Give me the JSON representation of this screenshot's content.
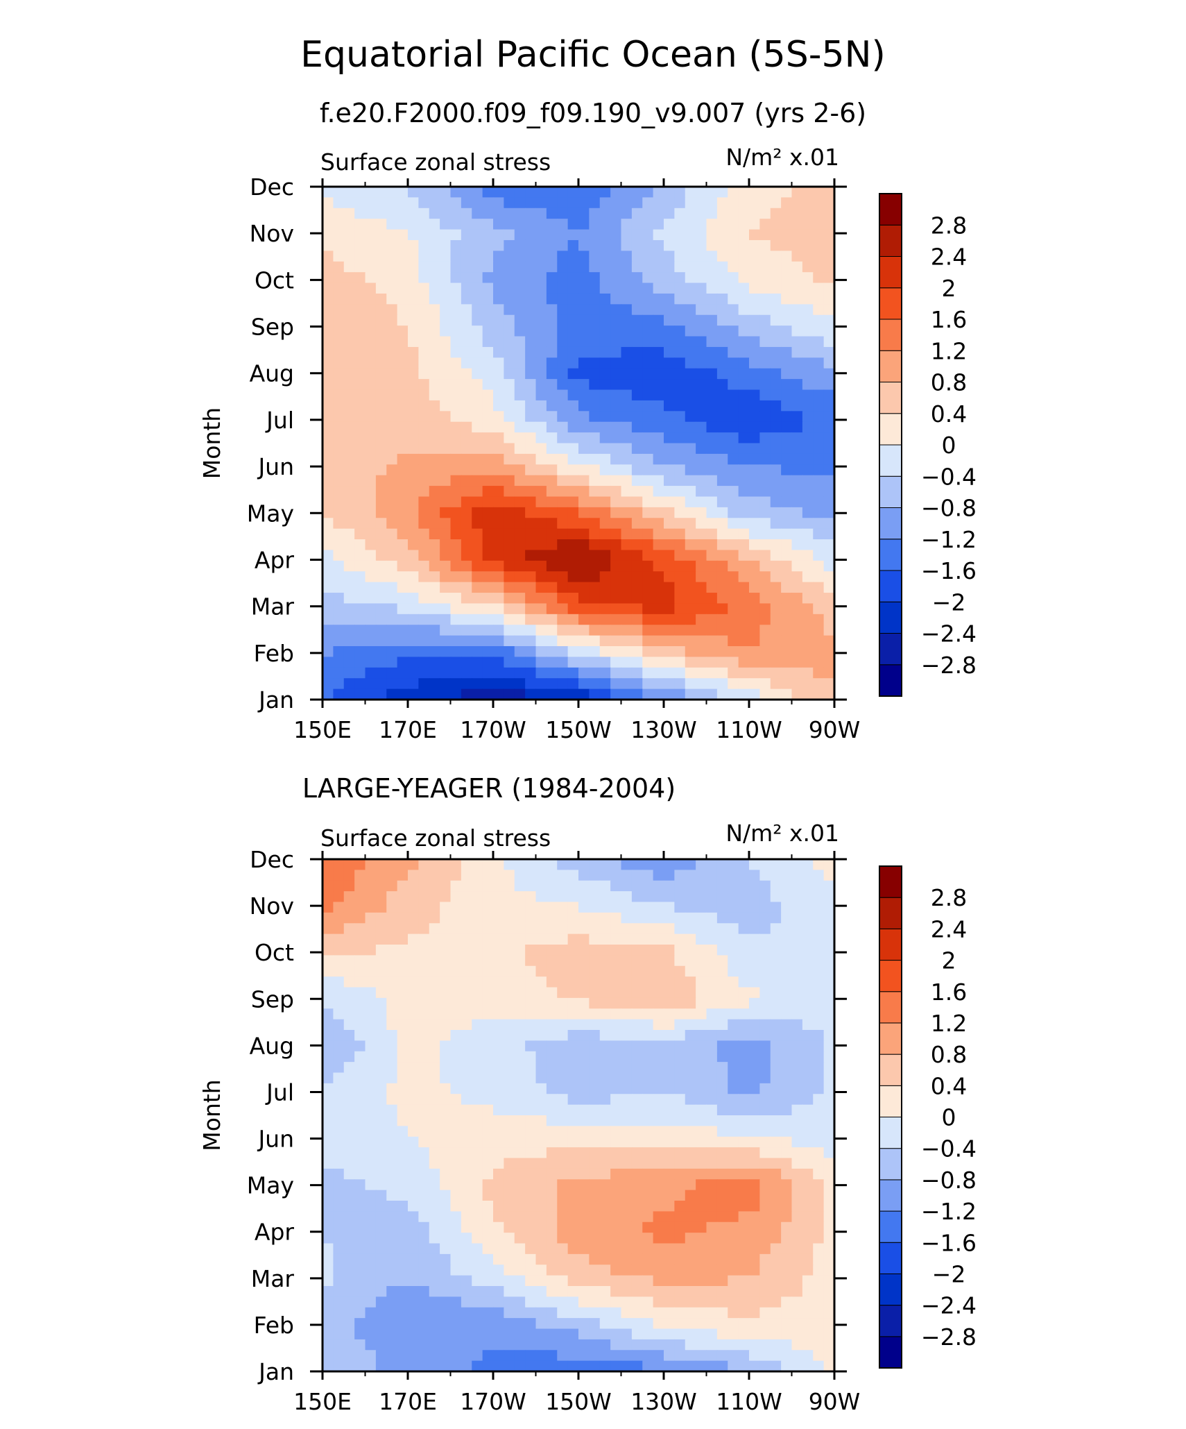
{
  "figure": {
    "title": "Equatorial Pacific Ocean (5S-5N)",
    "subtitle": "f.e20.F2000.f09_f09.190_v9.007 (yrs 2-6)"
  },
  "chart_data": [
    {
      "type": "heatmap",
      "panel_title": "",
      "field_label": "Surface zonal stress",
      "units_label": "N/m² x.01",
      "ylabel": "Month",
      "xlabel": "",
      "x_tick_labels": [
        "150E",
        "170E",
        "170W",
        "150W",
        "130W",
        "110W",
        "90W"
      ],
      "y_tick_labels": [
        "Jan",
        "Feb",
        "Mar",
        "Apr",
        "May",
        "Jun",
        "Jul",
        "Aug",
        "Sep",
        "Oct",
        "Nov",
        "Dec"
      ],
      "x": [
        150,
        170,
        190,
        210,
        230,
        250,
        270
      ],
      "xlim": [
        150,
        270
      ],
      "y": [
        1,
        2,
        3,
        4,
        5,
        6,
        7,
        8,
        9,
        10,
        11,
        12
      ],
      "ylim": [
        1,
        12
      ],
      "colorbar_levels": [
        -2.8,
        -2.4,
        -2,
        -1.6,
        -1.2,
        -0.8,
        -0.4,
        0,
        0.4,
        0.8,
        1.2,
        1.6,
        2,
        2.4,
        2.8
      ],
      "values": [
        [
          -1.6,
          -2.2,
          -2.7,
          -2.3,
          -1.2,
          -0.3,
          0.8
        ],
        [
          -1.2,
          -1.5,
          -1.5,
          -0.3,
          0.6,
          1.2,
          0.9
        ],
        [
          -0.6,
          -0.3,
          0.4,
          1.8,
          2.2,
          1.4,
          0.6
        ],
        [
          -0.1,
          0.6,
          2.1,
          2.9,
          1.9,
          0.8,
          -0.2
        ],
        [
          0.4,
          1.1,
          2.3,
          1.6,
          0.5,
          -0.6,
          -0.9
        ],
        [
          0.5,
          0.9,
          1.0,
          0.1,
          -0.8,
          -1.2,
          -1.3
        ],
        [
          0.6,
          0.6,
          0.2,
          -1.1,
          -1.5,
          -1.9,
          -1.5
        ],
        [
          0.7,
          0.5,
          -0.2,
          -1.7,
          -1.9,
          -1.4,
          -0.9
        ],
        [
          0.8,
          0.4,
          -0.6,
          -1.4,
          -1.3,
          -0.6,
          -0.1
        ],
        [
          0.6,
          0.2,
          -0.9,
          -1.4,
          -0.6,
          0.1,
          0.5
        ],
        [
          0.3,
          0.0,
          -0.7,
          -1.2,
          -0.3,
          0.4,
          0.6
        ],
        [
          -0.1,
          -0.4,
          -1.4,
          -1.5,
          -0.7,
          0.2,
          0.6
        ]
      ]
    },
    {
      "type": "heatmap",
      "panel_title": "LARGE-YEAGER (1984-2004)",
      "field_label": "Surface zonal stress",
      "units_label": "N/m² x.01",
      "ylabel": "Month",
      "xlabel": "",
      "x_tick_labels": [
        "150E",
        "170E",
        "170W",
        "150W",
        "130W",
        "110W",
        "90W"
      ],
      "y_tick_labels": [
        "Jan",
        "Feb",
        "Mar",
        "Apr",
        "May",
        "Jun",
        "Jul",
        "Aug",
        "Sep",
        "Oct",
        "Nov",
        "Dec"
      ],
      "x": [
        150,
        170,
        190,
        210,
        230,
        250,
        270
      ],
      "xlim": [
        150,
        270
      ],
      "y": [
        1,
        2,
        3,
        4,
        5,
        6,
        7,
        8,
        9,
        10,
        11,
        12
      ],
      "ylim": [
        1,
        12
      ],
      "colorbar_levels": [
        -2.8,
        -2.4,
        -2,
        -1.6,
        -1.2,
        -0.8,
        -0.4,
        0,
        0.4,
        0.8,
        1.2,
        1.6,
        2,
        2.4,
        2.8
      ],
      "values": [
        [
          -0.5,
          -0.9,
          -1.3,
          -1.5,
          -1.3,
          -0.8,
          0.1
        ],
        [
          -0.6,
          -1.2,
          -1.1,
          -0.6,
          0.1,
          0.3,
          0.2
        ],
        [
          -0.3,
          -0.8,
          -0.2,
          0.6,
          0.9,
          0.8,
          0.2
        ],
        [
          -0.4,
          -0.6,
          0.3,
          1.0,
          1.3,
          1.1,
          0.3
        ],
        [
          -0.5,
          -0.3,
          0.5,
          0.9,
          1.1,
          1.4,
          0.3
        ],
        [
          -0.3,
          0.0,
          0.2,
          0.3,
          0.2,
          0.1,
          -0.2
        ],
        [
          -0.3,
          0.1,
          -0.1,
          -0.6,
          -0.4,
          -0.9,
          -0.3
        ],
        [
          -0.8,
          0.1,
          -0.2,
          -0.7,
          -0.5,
          -1.0,
          -0.3
        ],
        [
          -0.4,
          0.2,
          0.1,
          0.5,
          0.7,
          0.1,
          -0.4
        ],
        [
          0.5,
          0.3,
          0.3,
          0.6,
          0.5,
          -0.3,
          -0.4
        ],
        [
          1.3,
          0.6,
          0.1,
          0.0,
          -0.4,
          -0.6,
          -0.1
        ],
        [
          1.6,
          0.9,
          0.1,
          -0.6,
          -1.1,
          -0.4,
          0.2
        ]
      ]
    }
  ],
  "palette": {
    "colors": [
      "#00008b",
      "#0a1fa8",
      "#0034c8",
      "#1a4fe6",
      "#4378f0",
      "#7a9ef4",
      "#adc4f8",
      "#d7e6fb",
      "#fde9d8",
      "#fcc8ad",
      "#fba47a",
      "#f87b4a",
      "#f2531f",
      "#d8330a",
      "#b01c04",
      "#870000"
    ]
  }
}
